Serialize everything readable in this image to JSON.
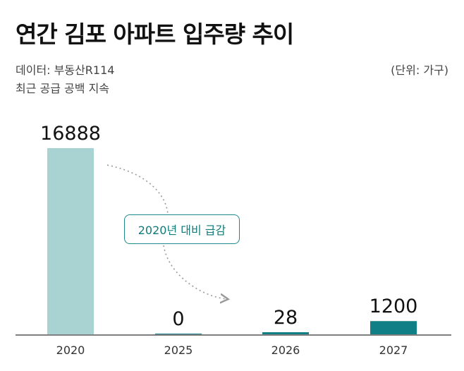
{
  "header": {
    "title": "연간 김포 아파트 입주량 추이",
    "source": "데이터: 부동산R114",
    "subtitle": "최근 공급 공백 지속",
    "unit": "(단위: 가구)"
  },
  "annotation": {
    "text": "2020년 대비 급감",
    "color": "#1a8a8a"
  },
  "chart_data": {
    "type": "bar",
    "title": "연간 김포 아파트 입주량 추이",
    "xlabel": "",
    "ylabel": "",
    "categories": [
      "2020",
      "2025",
      "2026",
      "2027"
    ],
    "values": [
      16888,
      0,
      28,
      1200
    ],
    "value_labels": [
      "16888",
      "0",
      "28",
      "1200"
    ],
    "colors": [
      "#a9d3d3",
      "#117f86",
      "#117f86",
      "#117f86"
    ],
    "ylim": [
      0,
      16888
    ],
    "grid": false,
    "legend": "none"
  }
}
